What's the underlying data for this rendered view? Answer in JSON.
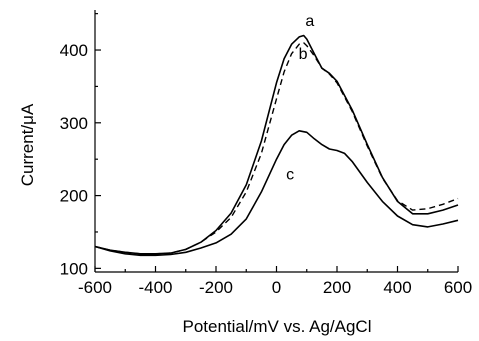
{
  "chart_data": {
    "type": "line",
    "title": "",
    "xlabel": "Potential/mV vs. Ag/AgCl",
    "ylabel": "Current/μA",
    "xlim": [
      -600,
      600
    ],
    "ylim": [
      95,
      455
    ],
    "xticks": [
      -600,
      -400,
      -200,
      0,
      200,
      400,
      600
    ],
    "yticks": [
      100,
      200,
      300,
      400
    ],
    "grid": false,
    "legend": "none",
    "series": [
      {
        "name": "a",
        "style": "solid",
        "color": "#000000",
        "x": [
          -600,
          -550,
          -500,
          -450,
          -400,
          -350,
          -300,
          -250,
          -200,
          -150,
          -100,
          -50,
          0,
          25,
          50,
          75,
          90,
          100,
          125,
          150,
          175,
          200,
          250,
          300,
          350,
          400,
          450,
          500,
          550,
          600
        ],
        "y": [
          130,
          125,
          122,
          120,
          120,
          121,
          126,
          136,
          152,
          176,
          215,
          275,
          355,
          388,
          408,
          418,
          420,
          415,
          395,
          375,
          368,
          357,
          318,
          270,
          225,
          192,
          175,
          175,
          180,
          187
        ]
      },
      {
        "name": "b",
        "style": "dashed",
        "color": "#000000",
        "x": [
          -600,
          -550,
          -500,
          -450,
          -400,
          -350,
          -300,
          -250,
          -200,
          -150,
          -100,
          -50,
          0,
          25,
          50,
          75,
          90,
          100,
          125,
          150,
          175,
          200,
          250,
          300,
          350,
          400,
          450,
          500,
          550,
          600
        ],
        "y": [
          130,
          125,
          122,
          120,
          120,
          121,
          126,
          136,
          150,
          170,
          205,
          258,
          333,
          370,
          395,
          408,
          410,
          406,
          392,
          375,
          367,
          355,
          316,
          268,
          224,
          193,
          180,
          182,
          188,
          196
        ]
      },
      {
        "name": "c",
        "style": "solid",
        "color": "#000000",
        "x": [
          -600,
          -550,
          -500,
          -450,
          -400,
          -350,
          -300,
          -250,
          -200,
          -150,
          -100,
          -50,
          0,
          25,
          50,
          75,
          100,
          125,
          150,
          175,
          200,
          225,
          250,
          300,
          350,
          400,
          450,
          500,
          550,
          600
        ],
        "y": [
          130,
          124,
          120,
          118,
          118,
          119,
          122,
          128,
          135,
          147,
          168,
          205,
          250,
          270,
          283,
          289,
          287,
          278,
          270,
          264,
          262,
          258,
          247,
          218,
          192,
          172,
          160,
          157,
          161,
          166
        ]
      }
    ],
    "annotations": [
      {
        "text": "a",
        "x": 110,
        "y": 433
      },
      {
        "text": "b",
        "x": 88,
        "y": 388
      },
      {
        "text": "c",
        "x": 45,
        "y": 222
      }
    ]
  }
}
